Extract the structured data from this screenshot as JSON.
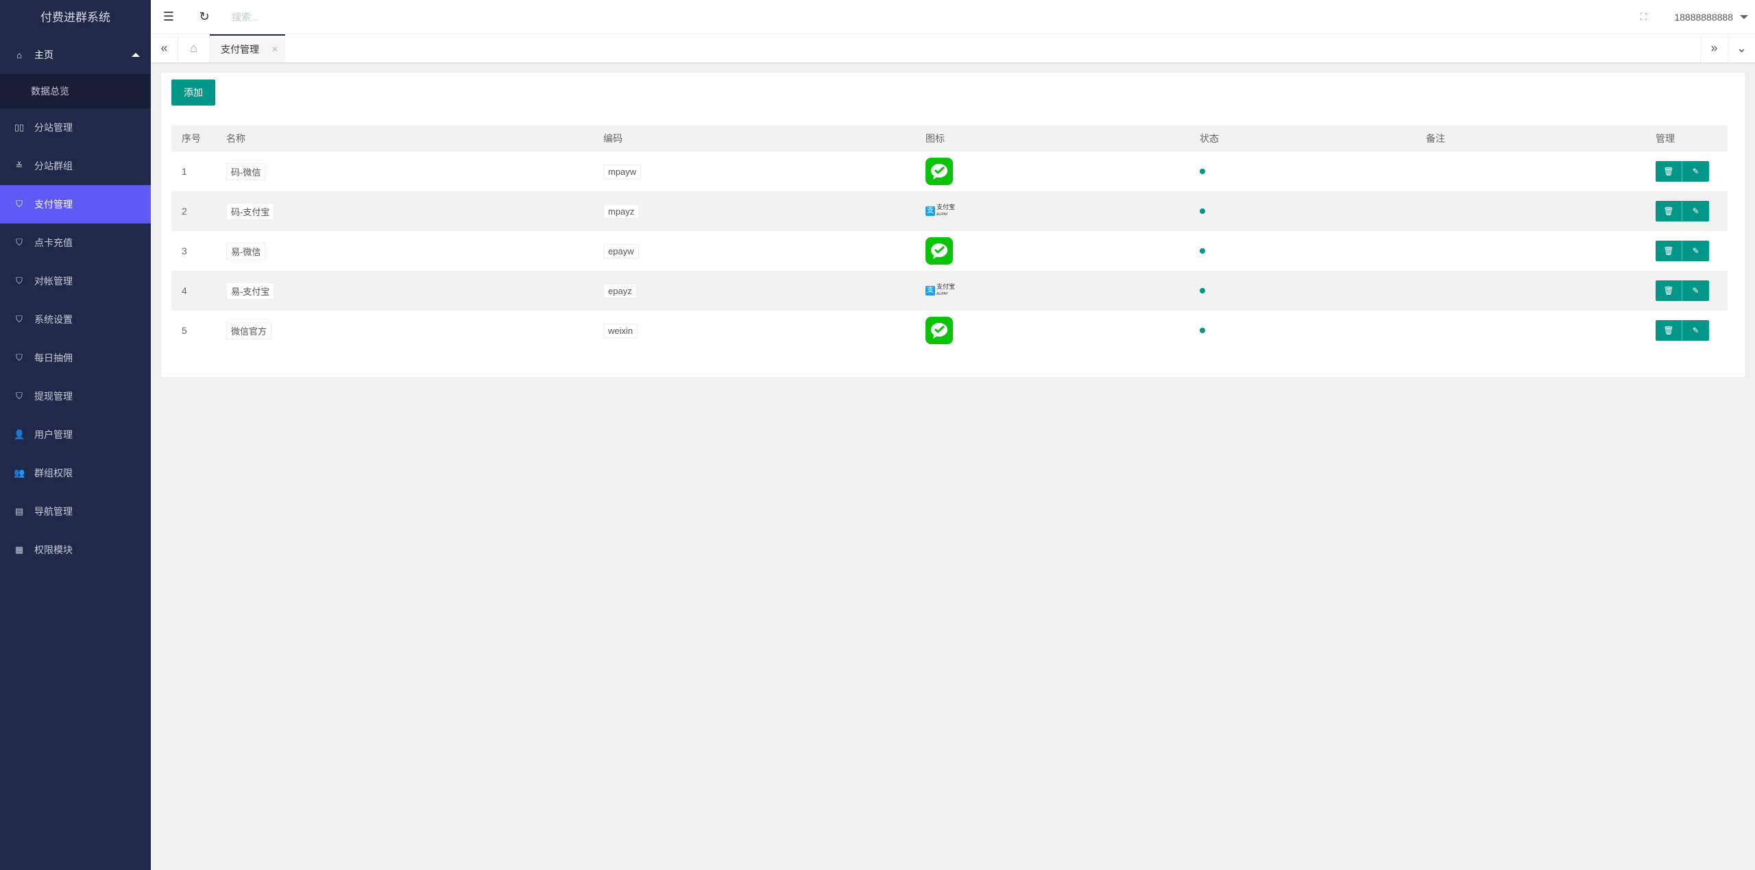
{
  "app": {
    "title": "付费进群系统"
  },
  "sidebar": {
    "home": "主页",
    "sub": "数据总览",
    "items": [
      {
        "label": "分站管理",
        "icon": "columns-icon",
        "glyph": "▯▯"
      },
      {
        "label": "分站群组",
        "icon": "sliders-icon",
        "glyph": "≚"
      },
      {
        "label": "支付管理",
        "icon": "shield-check-icon",
        "glyph": "⛉",
        "active": true
      },
      {
        "label": "点卡充值",
        "icon": "shield-check-icon",
        "glyph": "⛉"
      },
      {
        "label": "对帐管理",
        "icon": "shield-check-icon",
        "glyph": "⛉"
      },
      {
        "label": "系统设置",
        "icon": "shield-check-icon",
        "glyph": "⛉"
      },
      {
        "label": "每日抽佣",
        "icon": "shield-check-icon",
        "glyph": "⛉"
      },
      {
        "label": "提现管理",
        "icon": "shield-check-icon",
        "glyph": "⛉"
      },
      {
        "label": "用户管理",
        "icon": "user-icon",
        "glyph": "👤"
      },
      {
        "label": "群组权限",
        "icon": "users-icon",
        "glyph": "👥"
      },
      {
        "label": "导航管理",
        "icon": "nav-icon",
        "glyph": "▤"
      },
      {
        "label": "权限模块",
        "icon": "module-icon",
        "glyph": "▦"
      }
    ]
  },
  "header": {
    "search_placeholder": "搜索...",
    "user": "18888888888"
  },
  "tabs": [
    {
      "label": "支付管理"
    }
  ],
  "toolbar": {
    "add_label": "添加"
  },
  "table": {
    "columns": [
      "序号",
      "名称",
      "编码",
      "图标",
      "状态",
      "备注",
      "管理"
    ],
    "rows": [
      {
        "id": "1",
        "name": "码-微信",
        "code": "mpayw",
        "icon": "wechat",
        "status": "enabled",
        "note": ""
      },
      {
        "id": "2",
        "name": "码-支付宝",
        "code": "mpayz",
        "icon": "alipay",
        "status": "enabled",
        "note": ""
      },
      {
        "id": "3",
        "name": "易-微信",
        "code": "epayw",
        "icon": "wechat",
        "status": "enabled",
        "note": ""
      },
      {
        "id": "4",
        "name": "易-支付宝",
        "code": "epayz",
        "icon": "alipay",
        "status": "enabled",
        "note": ""
      },
      {
        "id": "5",
        "name": "微信官方",
        "code": "weixin",
        "icon": "wechat",
        "status": "enabled",
        "note": ""
      }
    ]
  },
  "colors": {
    "sidebar": "#20294a",
    "active": "#5f5af3",
    "primary": "#009688"
  }
}
